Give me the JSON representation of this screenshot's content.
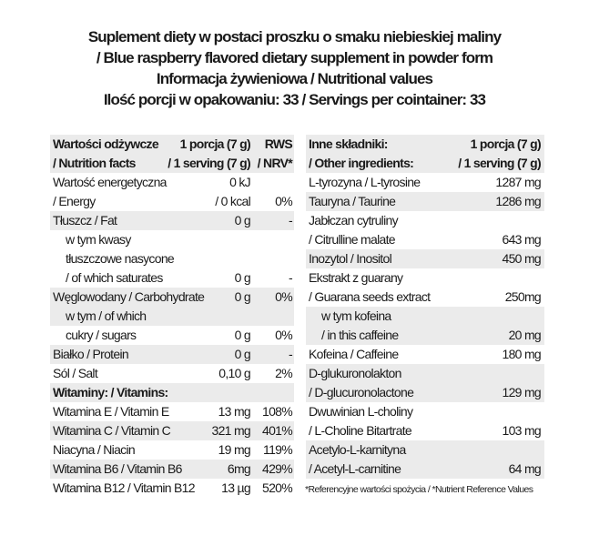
{
  "title": {
    "lines": [
      "Suplement diety w postaci proszku o smaku niebieskiej maliny",
      "/ Blue raspberry flavored dietary supplement in powder form",
      "Informacja żywieniowa / Nutritional values",
      "Ilość porcji w opakowaniu: 33 / Servings per cointainer: 33"
    ]
  },
  "nutrition": {
    "rows": [
      {
        "grey": true,
        "bold": true,
        "lines": [
          {
            "label": "Wartości odżywcze",
            "value": "1 porcja (7 g)",
            "nrv": "RWS"
          },
          {
            "label": "/ Nutrition facts",
            "value": "/ 1 serving (7 g)",
            "nrv": "/ NRV*"
          }
        ]
      },
      {
        "grey": false,
        "lines": [
          {
            "label": "Wartość energetyczna",
            "value": "0 kJ",
            "nrv": ""
          },
          {
            "label": "/ Energy",
            "value": "/ 0 kcal",
            "nrv": "0%"
          }
        ]
      },
      {
        "grey": true,
        "lines": [
          {
            "label": "Tłuszcz / Fat",
            "value": "0 g",
            "nrv": "-"
          }
        ]
      },
      {
        "grey": false,
        "indent": true,
        "lines": [
          {
            "label": "w tym kwasy",
            "value": "",
            "nrv": ""
          },
          {
            "label": "tłuszczowe nasycone",
            "value": "",
            "nrv": ""
          },
          {
            "label": "/ of which saturates",
            "value": "0 g",
            "nrv": "-"
          }
        ]
      },
      {
        "grey": true,
        "lines": [
          {
            "label": "Węglowodany / Carbohydrate",
            "value": "0 g",
            "nrv": "0%"
          },
          {
            "label": "w tym / of which",
            "value": "",
            "nrv": "",
            "indent": true
          }
        ]
      },
      {
        "grey": false,
        "indent": true,
        "lines": [
          {
            "label": "cukry / sugars",
            "value": "0 g",
            "nrv": "0%"
          }
        ]
      },
      {
        "grey": true,
        "lines": [
          {
            "label": "Białko / Protein",
            "value": "0 g",
            "nrv": "-"
          }
        ]
      },
      {
        "grey": false,
        "lines": [
          {
            "label": "Sól / Salt",
            "value": "0,10 g",
            "nrv": "2%"
          }
        ]
      },
      {
        "grey": true,
        "bold": true,
        "lines": [
          {
            "label": "Witaminy: / Vitamins:",
            "value": "",
            "nrv": ""
          }
        ]
      },
      {
        "grey": false,
        "lines": [
          {
            "label": "Witamina E / Vitamin E",
            "value": "13 mg",
            "nrv": "108%"
          }
        ]
      },
      {
        "grey": true,
        "lines": [
          {
            "label": "Witamina C / Vitamin C",
            "value": "321 mg",
            "nrv": "401%"
          }
        ]
      },
      {
        "grey": false,
        "lines": [
          {
            "label": "Niacyna / Niacin",
            "value": "19 mg",
            "nrv": "119%"
          }
        ]
      },
      {
        "grey": true,
        "lines": [
          {
            "label": "Witamina B6 / Vitamin B6",
            "value": "6mg",
            "nrv": "429%"
          }
        ]
      },
      {
        "grey": false,
        "lines": [
          {
            "label": "Witamina B12 / Vitamin B12",
            "value": "13 µg",
            "nrv": "520%"
          }
        ]
      }
    ]
  },
  "ingredients": {
    "rows": [
      {
        "grey": true,
        "bold": true,
        "lines": [
          {
            "label": "Inne składniki:",
            "value": "1 porcja (7 g)"
          },
          {
            "label": "/ Other ingredients:",
            "value": "/ 1 serving (7 g)"
          }
        ]
      },
      {
        "grey": false,
        "lines": [
          {
            "label": "L-tyrozyna / L-tyrosine",
            "value": "1287 mg"
          }
        ]
      },
      {
        "grey": true,
        "lines": [
          {
            "label": "Tauryna / Taurine",
            "value": "1286 mg"
          }
        ]
      },
      {
        "grey": false,
        "lines": [
          {
            "label": "Jabłczan cytruliny",
            "value": ""
          },
          {
            "label": "/ Citrulline malate",
            "value": "643 mg"
          }
        ]
      },
      {
        "grey": true,
        "lines": [
          {
            "label": "Inozytol / Inositol",
            "value": "450 mg"
          }
        ]
      },
      {
        "grey": false,
        "lines": [
          {
            "label": "Ekstrakt z guarany",
            "value": ""
          },
          {
            "label": "/ Guarana seeds extract",
            "value": "250mg"
          }
        ]
      },
      {
        "grey": true,
        "indent": true,
        "lines": [
          {
            "label": "w tym kofeina",
            "value": ""
          },
          {
            "label": "/ in this caffeine",
            "value": "20 mg"
          }
        ]
      },
      {
        "grey": false,
        "lines": [
          {
            "label": "Kofeina / Caffeine",
            "value": "180 mg"
          }
        ]
      },
      {
        "grey": true,
        "lines": [
          {
            "label": "D-glukuronolakton",
            "value": ""
          },
          {
            "label": "/ D-glucuronolactone",
            "value": "129 mg"
          }
        ]
      },
      {
        "grey": false,
        "lines": [
          {
            "label": "Dwuwinian L-choliny",
            "value": ""
          },
          {
            "label": "/ L-Choline Bitartrate",
            "value": "103 mg"
          }
        ]
      },
      {
        "grey": true,
        "lines": [
          {
            "label": "Acetylo-L-karnityna",
            "value": ""
          },
          {
            "label": "/ Acetyl-L-carnitine",
            "value": "64 mg"
          }
        ]
      }
    ]
  },
  "footnote": "*Referencyjne wartości spożycia /  *Nutrient Reference Values"
}
